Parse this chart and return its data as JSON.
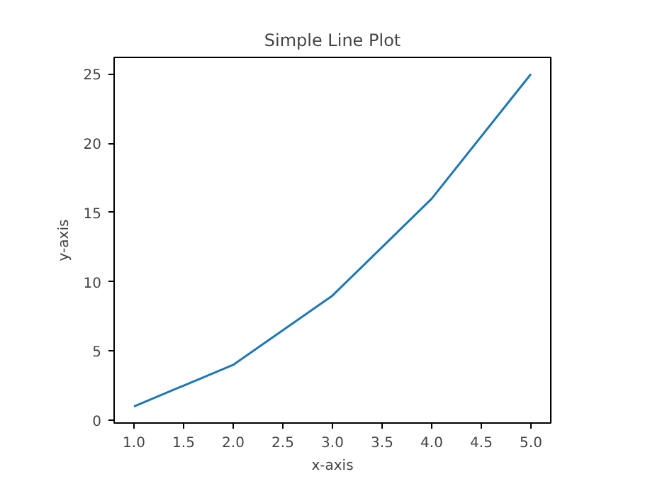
{
  "chart_data": {
    "type": "line",
    "title": "Simple Line Plot",
    "xlabel": "x-axis",
    "ylabel": "y-axis",
    "x": [
      1,
      2,
      3,
      4,
      5
    ],
    "series": [
      {
        "color": "#1f77b4",
        "values": [
          1,
          4,
          9,
          16,
          25
        ]
      }
    ],
    "xlim": [
      0.8,
      5.2
    ],
    "ylim": [
      -0.2,
      26.2
    ],
    "xticks": [
      {
        "value": 1,
        "label": "1.0"
      },
      {
        "value": 1.5,
        "label": "1.5"
      },
      {
        "value": 2,
        "label": "2.0"
      },
      {
        "value": 2.5,
        "label": "2.5"
      },
      {
        "value": 3,
        "label": "3.0"
      },
      {
        "value": 3.5,
        "label": "3.5"
      },
      {
        "value": 4,
        "label": "4.0"
      },
      {
        "value": 4.5,
        "label": "4.5"
      },
      {
        "value": 5,
        "label": "5.0"
      }
    ],
    "yticks": [
      0,
      5,
      10,
      15,
      20,
      25
    ],
    "grid": false,
    "marker": "none",
    "line_style": "solid"
  }
}
